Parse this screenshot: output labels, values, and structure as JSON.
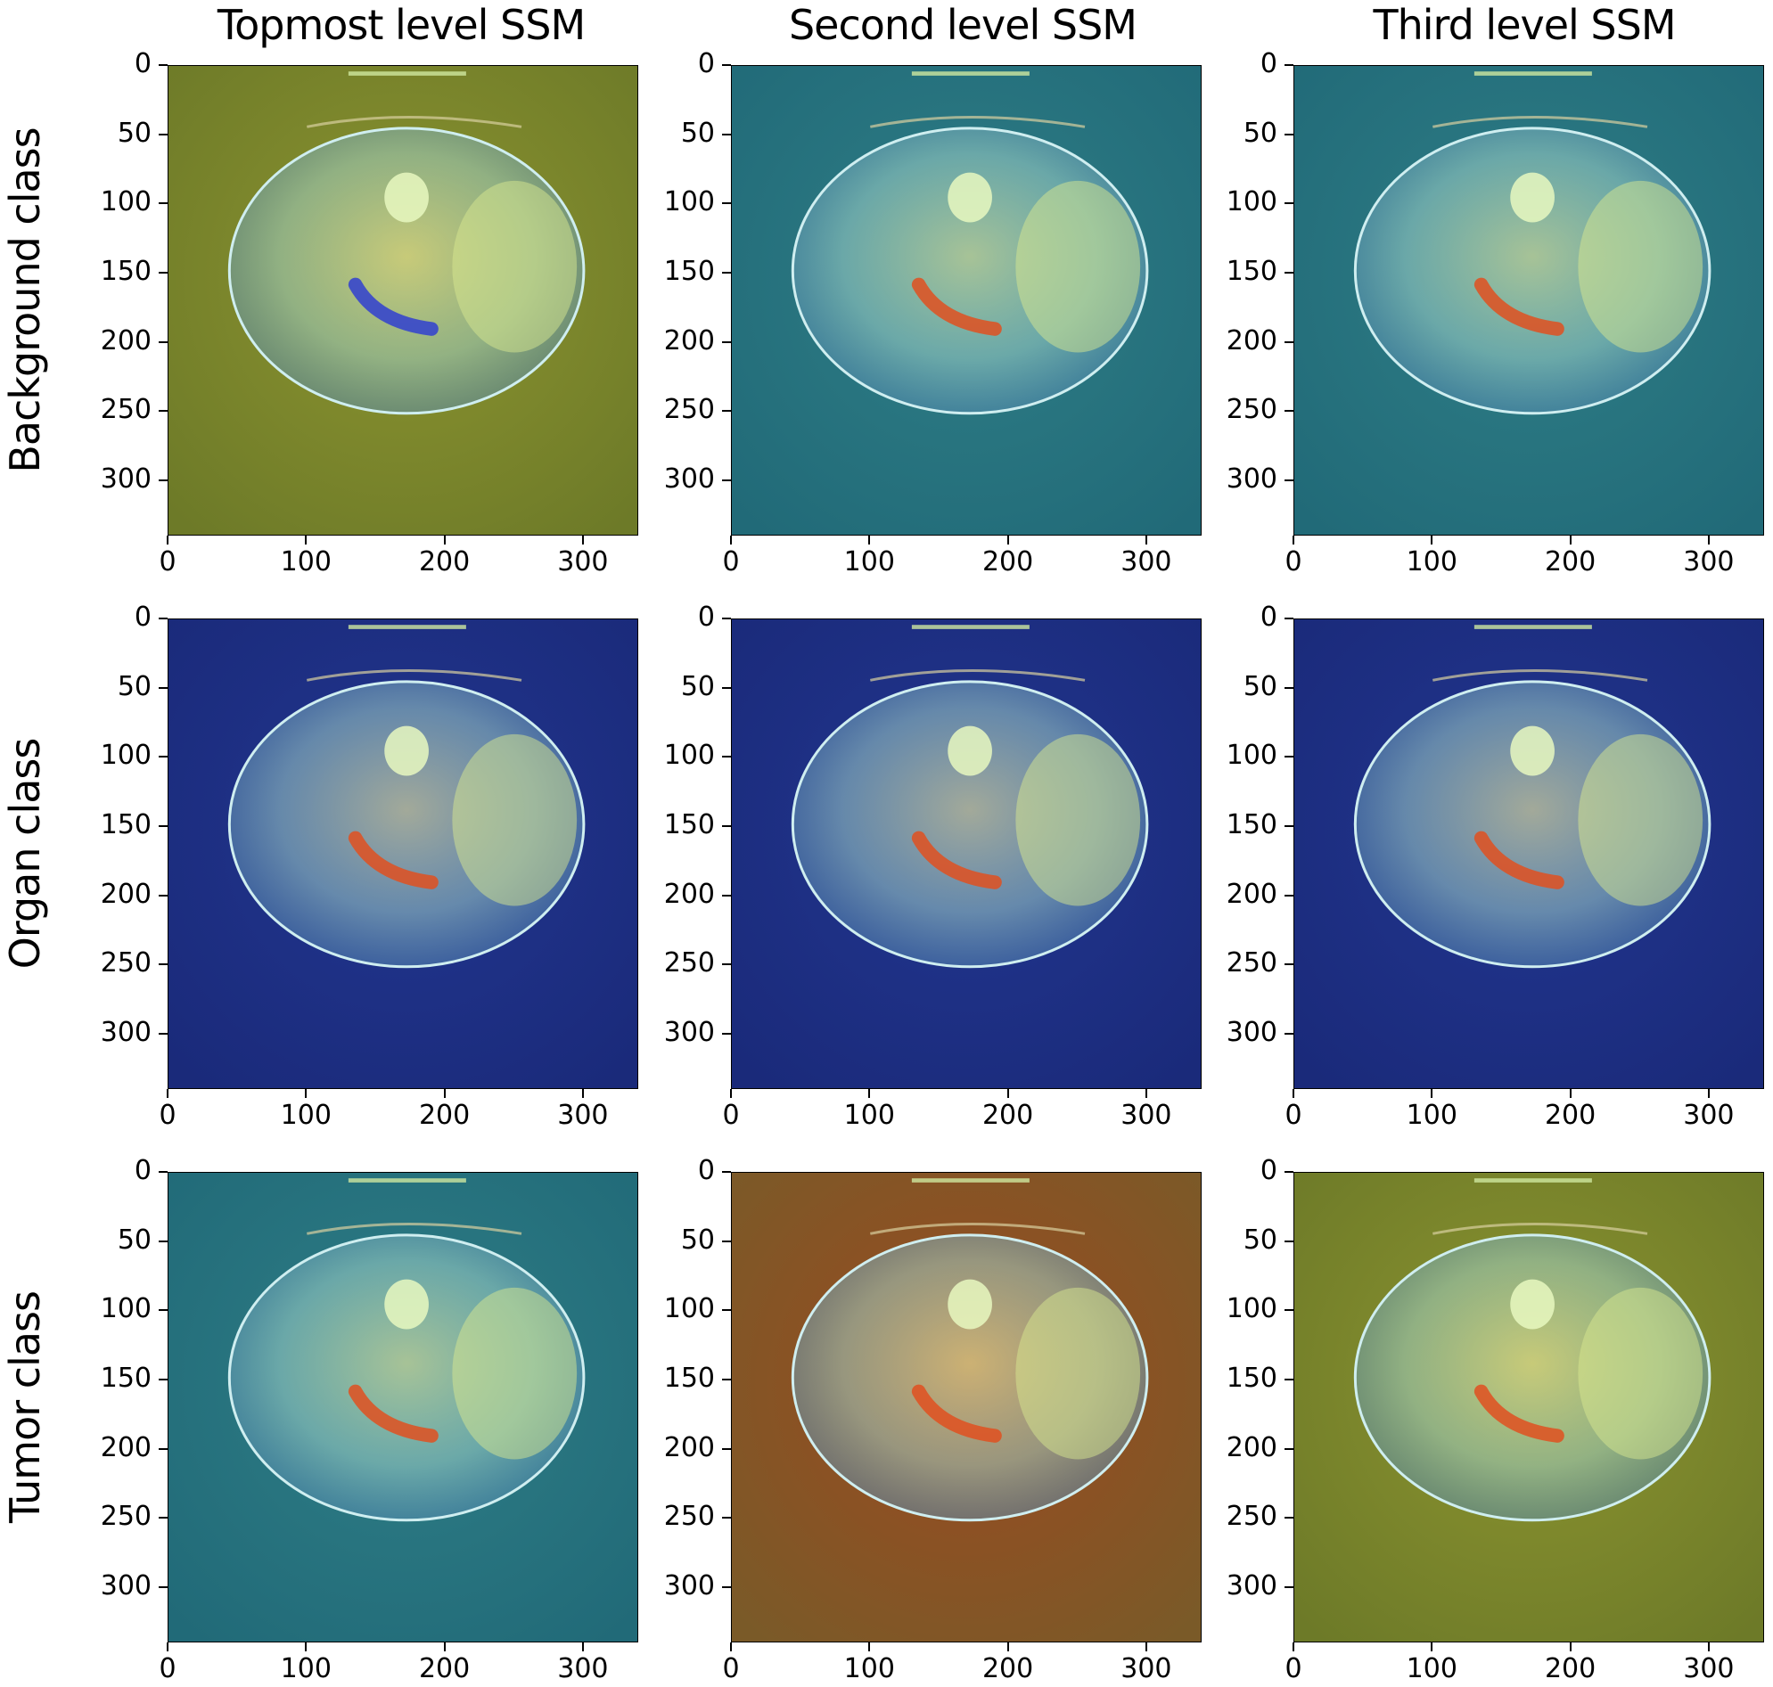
{
  "figure": {
    "column_titles": [
      "Topmost level SSM",
      "Second level SSM",
      "Third level SSM"
    ],
    "row_labels": [
      "Background class",
      "Organ class",
      "Tumor class"
    ]
  },
  "colors": {
    "dark_blue": "#1f2f8f",
    "teal": "#2a8a8a",
    "olive": "#7f8a2a",
    "red": "#b23a1a",
    "yellow": "#f0e070",
    "cyan": "#7fe0e0"
  },
  "chart_data": [
    {
      "type": "heatmap",
      "row": "Background class",
      "column": "Topmost level SSM",
      "xlim": [
        0,
        340
      ],
      "ylim": [
        340,
        0
      ],
      "x_ticks": [
        "0",
        "100",
        "200",
        "300"
      ],
      "y_ticks": [
        "0",
        "50",
        "100",
        "150",
        "200",
        "250",
        "300"
      ],
      "dominant_tone": "olive"
    },
    {
      "type": "heatmap",
      "row": "Background class",
      "column": "Second level SSM",
      "xlim": [
        0,
        340
      ],
      "ylim": [
        340,
        0
      ],
      "x_ticks": [
        "0",
        "100",
        "200",
        "300"
      ],
      "y_ticks": [
        "0",
        "50",
        "100",
        "150",
        "200",
        "250",
        "300"
      ],
      "dominant_tone": "teal"
    },
    {
      "type": "heatmap",
      "row": "Background class",
      "column": "Third level SSM",
      "xlim": [
        0,
        340
      ],
      "ylim": [
        340,
        0
      ],
      "x_ticks": [
        "0",
        "100",
        "200",
        "300"
      ],
      "y_ticks": [
        "0",
        "50",
        "100",
        "150",
        "200",
        "250",
        "300"
      ],
      "dominant_tone": "teal"
    },
    {
      "type": "heatmap",
      "row": "Organ class",
      "column": "Topmost level SSM",
      "xlim": [
        0,
        340
      ],
      "ylim": [
        340,
        0
      ],
      "x_ticks": [
        "0",
        "100",
        "200",
        "300"
      ],
      "y_ticks": [
        "0",
        "50",
        "100",
        "150",
        "200",
        "250",
        "300"
      ],
      "dominant_tone": "dark_blue"
    },
    {
      "type": "heatmap",
      "row": "Organ class",
      "column": "Second level SSM",
      "xlim": [
        0,
        340
      ],
      "ylim": [
        340,
        0
      ],
      "x_ticks": [
        "0",
        "100",
        "200",
        "300"
      ],
      "y_ticks": [
        "0",
        "50",
        "100",
        "150",
        "200",
        "250",
        "300"
      ],
      "dominant_tone": "dark_blue"
    },
    {
      "type": "heatmap",
      "row": "Organ class",
      "column": "Third level SSM",
      "xlim": [
        0,
        340
      ],
      "ylim": [
        340,
        0
      ],
      "x_ticks": [
        "0",
        "100",
        "200",
        "300"
      ],
      "y_ticks": [
        "0",
        "50",
        "100",
        "150",
        "200",
        "250",
        "300"
      ],
      "dominant_tone": "dark_blue"
    },
    {
      "type": "heatmap",
      "row": "Tumor class",
      "column": "Topmost level SSM",
      "xlim": [
        0,
        340
      ],
      "ylim": [
        340,
        0
      ],
      "x_ticks": [
        "0",
        "100",
        "200",
        "300"
      ],
      "y_ticks": [
        "0",
        "50",
        "100",
        "150",
        "200",
        "250",
        "300"
      ],
      "dominant_tone": "teal"
    },
    {
      "type": "heatmap",
      "row": "Tumor class",
      "column": "Second level SSM",
      "xlim": [
        0,
        340
      ],
      "ylim": [
        340,
        0
      ],
      "x_ticks": [
        "0",
        "100",
        "200",
        "300"
      ],
      "y_ticks": [
        "0",
        "50",
        "100",
        "150",
        "200",
        "250",
        "300"
      ],
      "dominant_tone": "red"
    },
    {
      "type": "heatmap",
      "row": "Tumor class",
      "column": "Third level SSM",
      "xlim": [
        0,
        340
      ],
      "ylim": [
        340,
        0
      ],
      "x_ticks": [
        "0",
        "100",
        "200",
        "300"
      ],
      "y_ticks": [
        "0",
        "50",
        "100",
        "150",
        "200",
        "250",
        "300"
      ],
      "dominant_tone": "olive"
    }
  ]
}
